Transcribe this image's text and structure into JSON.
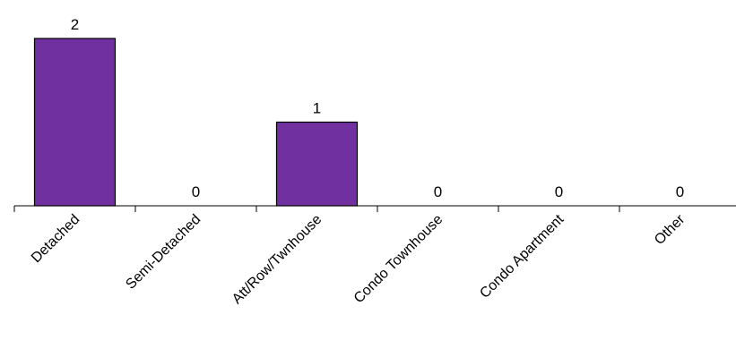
{
  "chart_data": {
    "type": "bar",
    "categories": [
      "Detached",
      "Semi-Detached",
      "Att/Row/Twnhouse",
      "Condo Townhouse",
      "Condo Apartment",
      "Other"
    ],
    "values": [
      2,
      0,
      1,
      0,
      0,
      0
    ],
    "data_labels": [
      "2",
      "0",
      "1",
      "0",
      "0",
      "0"
    ],
    "ylim": [
      0,
      2
    ],
    "grid": false,
    "legend": "none",
    "bar_color": "#7030A0",
    "bar_border_color": "#000000",
    "axis_color": "#000000"
  }
}
